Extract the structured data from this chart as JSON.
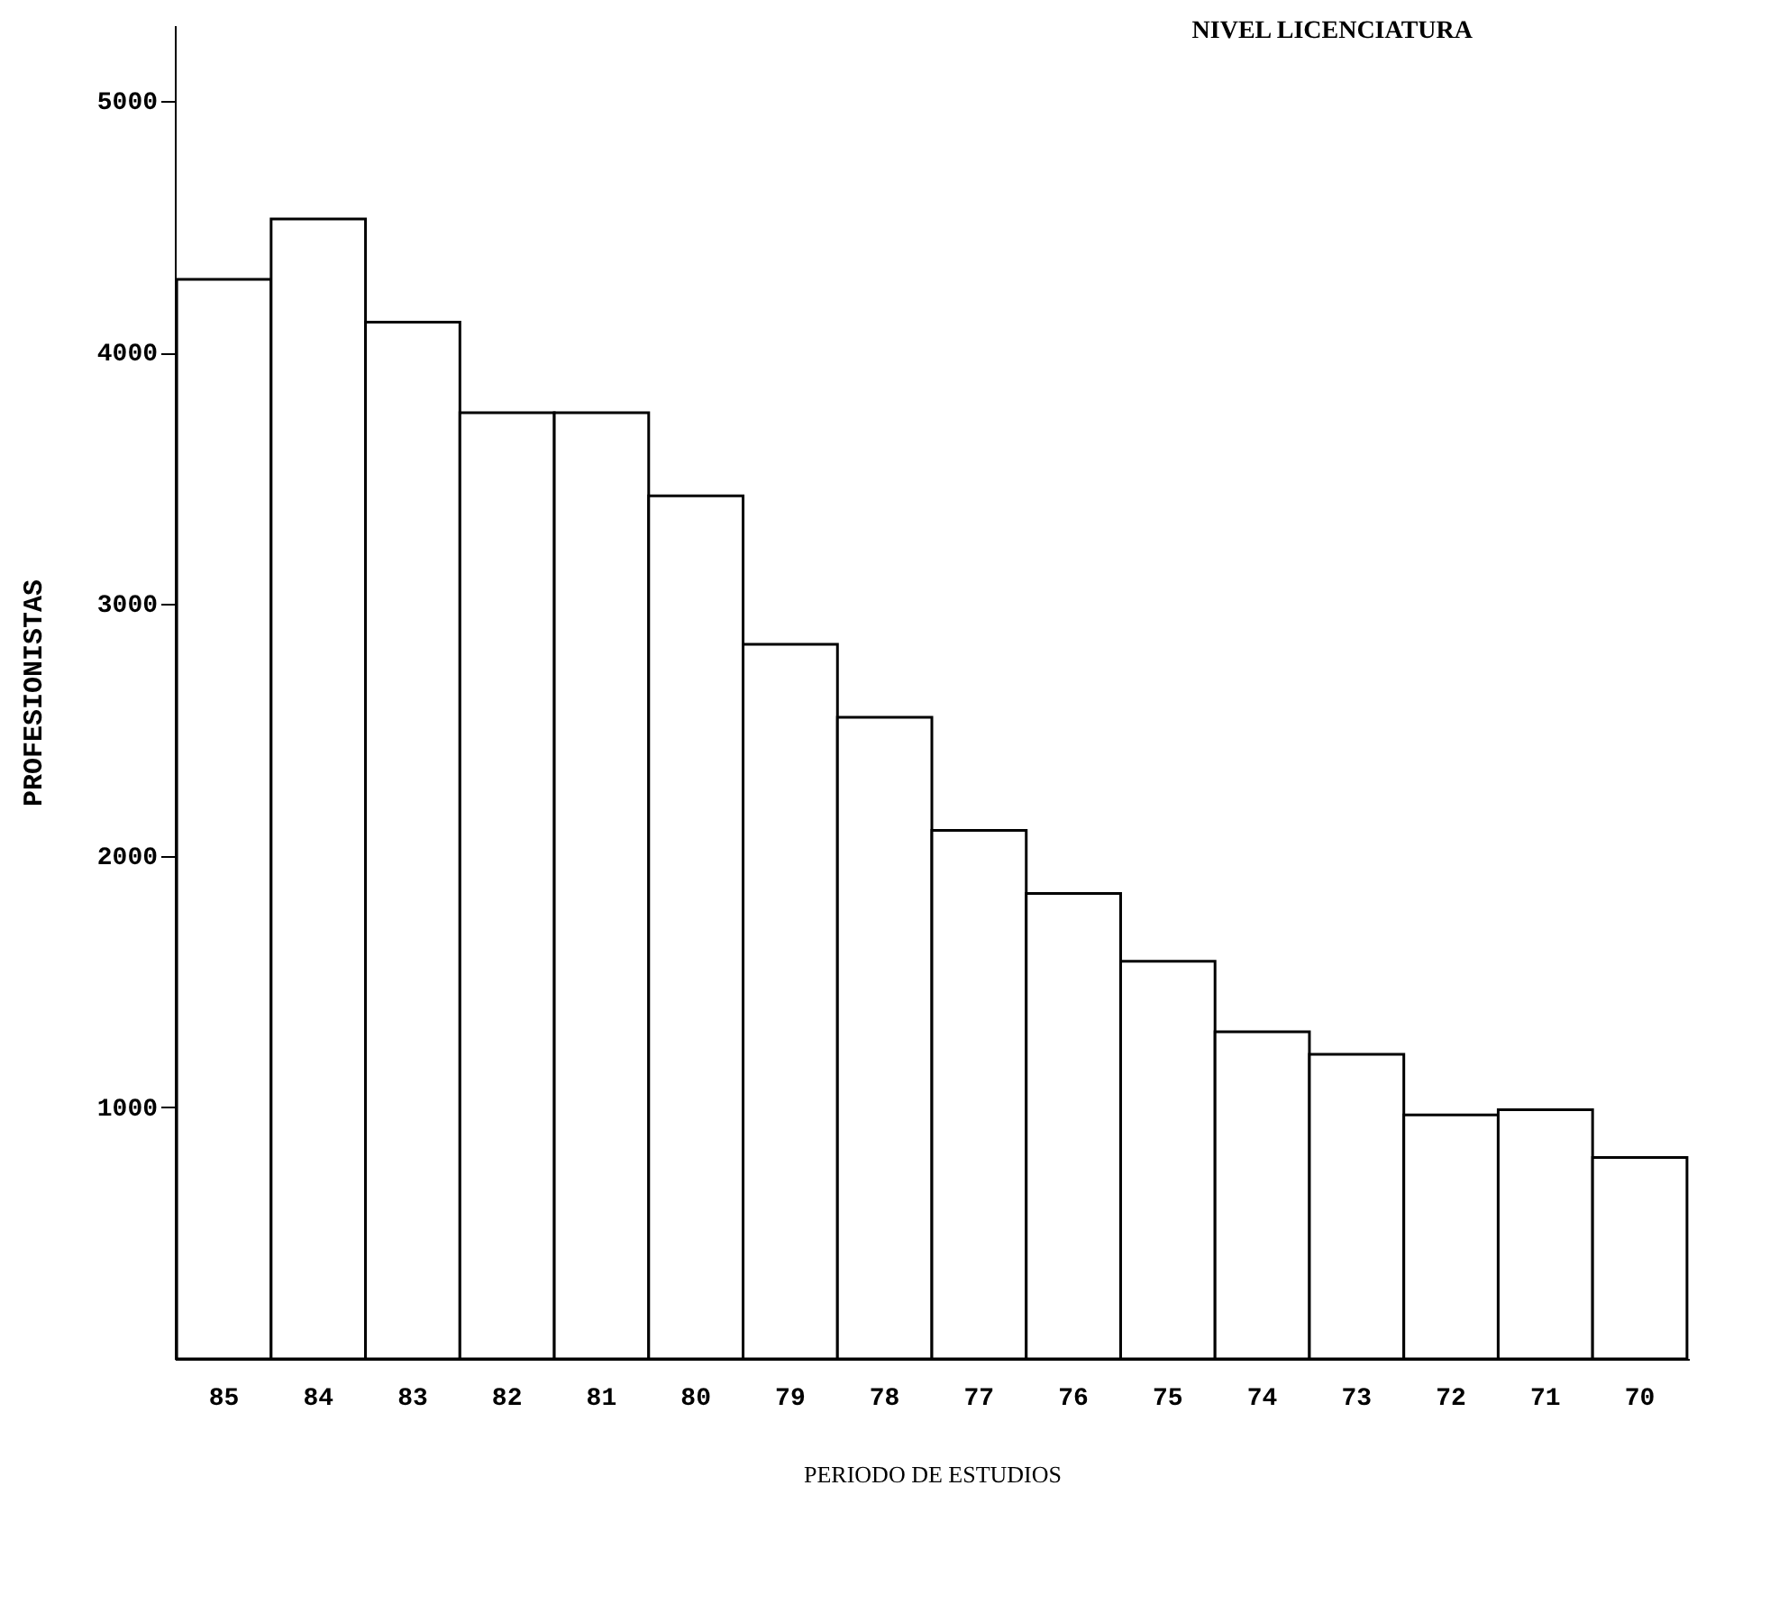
{
  "chart_data": {
    "type": "bar",
    "title": "NIVEL LICENCIATURA",
    "xlabel": "PERIODO DE ESTUDIOS",
    "ylabel": "PROFESIONISTAS",
    "categories": [
      "85",
      "84",
      "83",
      "82",
      "81",
      "80",
      "79",
      "78",
      "77",
      "76",
      "75",
      "74",
      "73",
      "72",
      "71",
      "70"
    ],
    "values": [
      4290,
      4530,
      4120,
      3760,
      3760,
      3430,
      2840,
      2550,
      2100,
      1850,
      1580,
      1300,
      1210,
      970,
      990,
      800
    ],
    "color": "#ffffff",
    "ylim": [
      0,
      5300
    ],
    "yticks": [
      1000,
      2000,
      3000,
      4000,
      5000
    ],
    "grid": false
  }
}
